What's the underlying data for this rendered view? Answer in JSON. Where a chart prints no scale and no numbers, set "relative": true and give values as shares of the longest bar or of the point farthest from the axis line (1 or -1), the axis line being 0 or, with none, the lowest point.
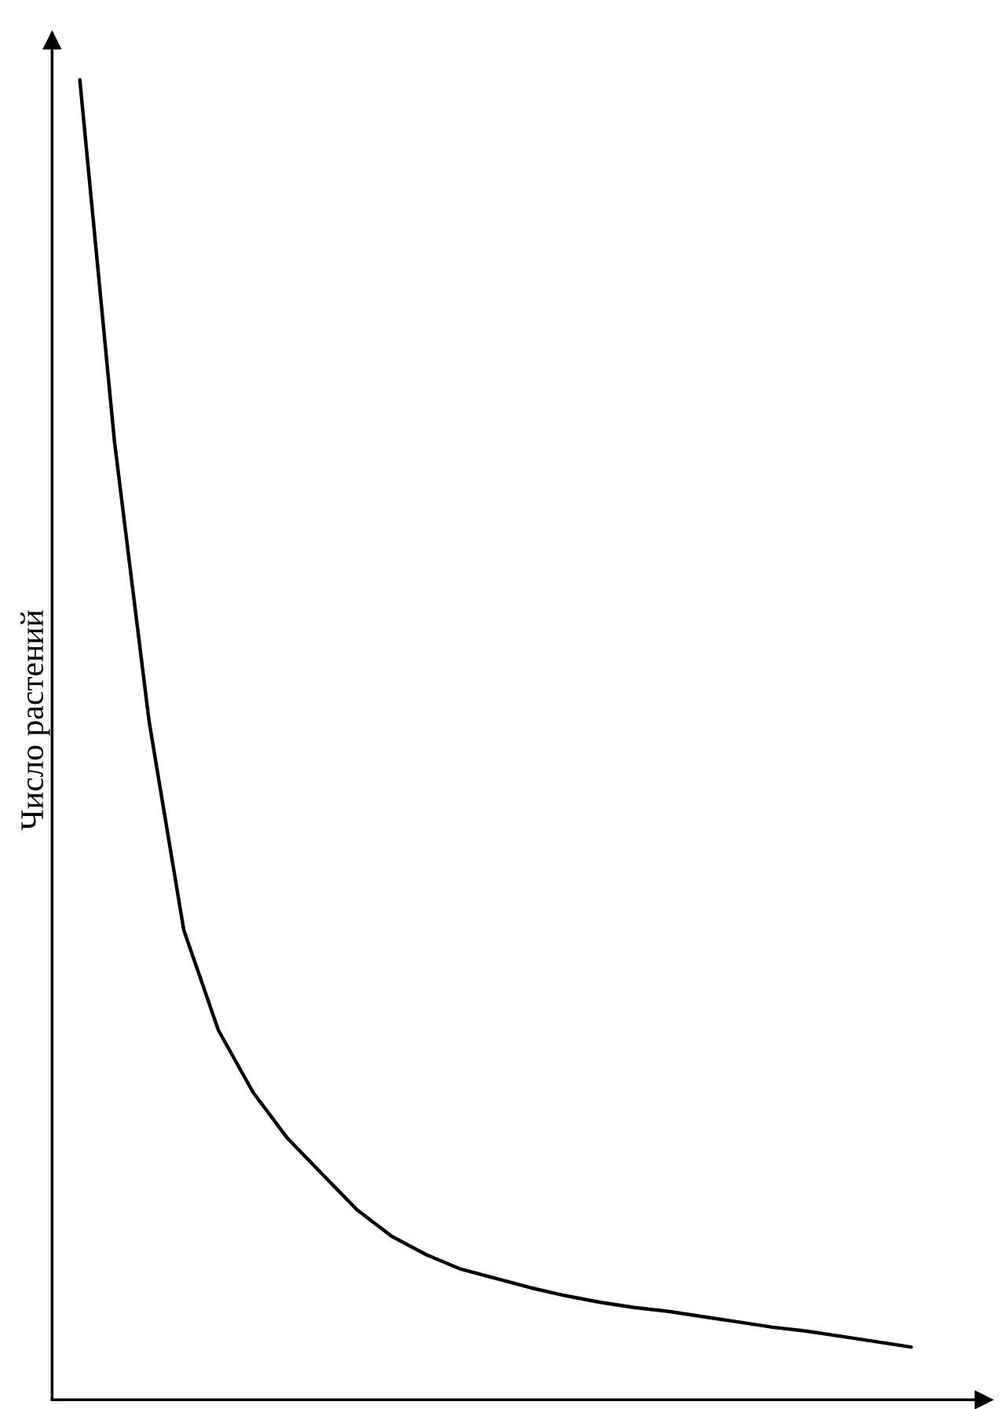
{
  "chart_data": {
    "type": "line",
    "relative": true,
    "ylabel": "Число растений",
    "categories": [
      null,
      null,
      null,
      null,
      null,
      null,
      null,
      null,
      null,
      null,
      null,
      null,
      null,
      null,
      null,
      null,
      null,
      null,
      null,
      null,
      null,
      null,
      null,
      null,
      null
    ],
    "series": [
      {
        "color": "#000000",
        "values": [
          1.0,
          0.726,
          0.514,
          0.356,
          0.28,
          0.233,
          0.198,
          0.171,
          0.144,
          0.124,
          0.11,
          0.099,
          0.092,
          0.085,
          0.079,
          0.074,
          0.07,
          0.067,
          0.063,
          0.059,
          0.055,
          0.052,
          0.048,
          0.044,
          0.04
        ]
      }
    ],
    "marker": "none",
    "line_style": "solid"
  }
}
